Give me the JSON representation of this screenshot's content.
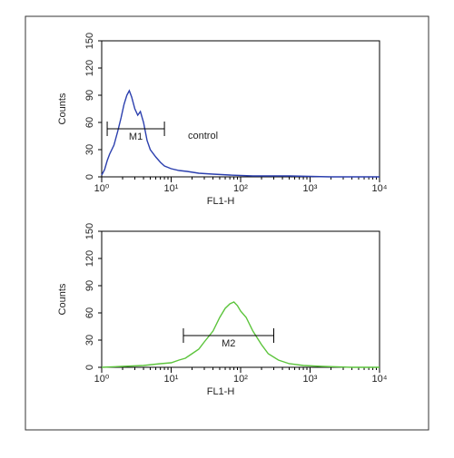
{
  "chart_data": [
    {
      "type": "line",
      "annotation": "control",
      "xlabel": "FL1-H",
      "ylabel": "Counts",
      "xlog": true,
      "xlim": [
        1,
        10000
      ],
      "xticks": [
        {
          "value": 1,
          "label": "10⁰"
        },
        {
          "value": 10,
          "label": "10¹"
        },
        {
          "value": 100,
          "label": "10²"
        },
        {
          "value": 1000,
          "label": "10³"
        },
        {
          "value": 10000,
          "label": "10⁴"
        }
      ],
      "ylim": [
        0,
        150
      ],
      "yticks": [
        0,
        30,
        60,
        90,
        120,
        150
      ],
      "x": [
        1,
        1.1,
        1.2,
        1.3,
        1.5,
        1.7,
        1.9,
        2.1,
        2.3,
        2.5,
        2.7,
        3,
        3.3,
        3.6,
        4,
        4.5,
        5,
        6,
        7,
        8,
        10,
        13,
        17,
        25,
        40,
        70,
        150,
        500,
        2000,
        10000
      ],
      "series": [
        {
          "color": "#2b3fae",
          "values": [
            2,
            8,
            18,
            25,
            35,
            50,
            65,
            80,
            90,
            95,
            88,
            75,
            68,
            72,
            60,
            40,
            30,
            22,
            16,
            12,
            9,
            7,
            6,
            4,
            3,
            2,
            1,
            1,
            0,
            0
          ]
        }
      ],
      "markers": [
        {
          "label": "M1",
          "x": [
            1.2,
            8
          ],
          "y": 53
        }
      ]
    },
    {
      "type": "line",
      "xlabel": "FL1-H",
      "ylabel": "Counts",
      "xlog": true,
      "xlim": [
        1,
        10000
      ],
      "xticks": [
        {
          "value": 1,
          "label": "10⁰"
        },
        {
          "value": 10,
          "label": "10¹"
        },
        {
          "value": 100,
          "label": "10²"
        },
        {
          "value": 1000,
          "label": "10³"
        },
        {
          "value": 10000,
          "label": "10⁴"
        }
      ],
      "ylim": [
        0,
        150
      ],
      "yticks": [
        0,
        30,
        60,
        90,
        120,
        150
      ],
      "x": [
        1,
        2,
        4,
        7,
        10,
        13,
        16,
        20,
        25,
        30,
        40,
        50,
        60,
        70,
        80,
        90,
        100,
        120,
        150,
        200,
        250,
        350,
        500,
        800,
        1500,
        4000,
        10000
      ],
      "series": [
        {
          "color": "#5cc43c",
          "values": [
            0,
            1,
            2,
            4,
            5,
            8,
            10,
            15,
            20,
            28,
            40,
            55,
            65,
            70,
            72,
            68,
            62,
            55,
            40,
            25,
            15,
            8,
            4,
            2,
            1,
            0,
            0
          ]
        }
      ],
      "markers": [
        {
          "label": "M2",
          "x": [
            15,
            300
          ],
          "y": 35
        }
      ]
    }
  ]
}
